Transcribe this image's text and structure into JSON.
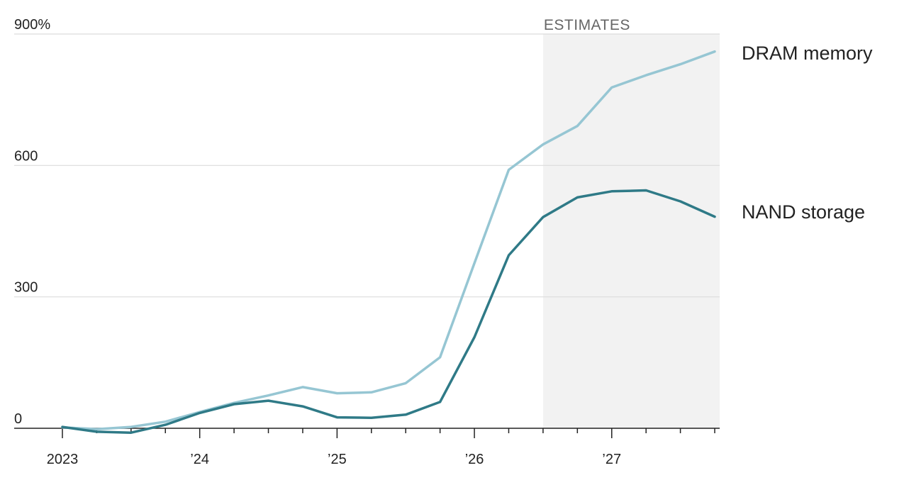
{
  "chart_data": {
    "type": "line",
    "ylabel": "",
    "xlabel": "",
    "ylim": [
      0,
      900
    ],
    "y_ticks": [
      {
        "value": 0,
        "label": "0"
      },
      {
        "value": 300,
        "label": "300"
      },
      {
        "value": 600,
        "label": "600"
      },
      {
        "value": 900,
        "label": "900%"
      }
    ],
    "xlim": [
      2023.0,
      2027.75
    ],
    "x_ticks": [
      {
        "value": 2023.0,
        "label": "2023"
      },
      {
        "value": 2024.0,
        "label": "’24"
      },
      {
        "value": 2025.0,
        "label": "’25"
      },
      {
        "value": 2026.0,
        "label": "’26"
      },
      {
        "value": 2027.0,
        "label": "’27"
      }
    ],
    "minor_ticks": [
      2023.25,
      2023.5,
      2023.75,
      2024.25,
      2024.5,
      2024.75,
      2025.25,
      2025.5,
      2025.75,
      2026.25,
      2026.5,
      2026.75,
      2027.25,
      2027.5,
      2027.75
    ],
    "estimates_region": {
      "start": 2026.5,
      "end": 2027.75,
      "label": "ESTIMATES"
    },
    "grid": true,
    "x": [
      2023.0,
      2023.25,
      2023.5,
      2023.75,
      2024.0,
      2024.25,
      2024.5,
      2024.75,
      2025.0,
      2025.25,
      2025.5,
      2025.75,
      2026.0,
      2026.25,
      2026.5,
      2026.75,
      2027.0,
      2027.25,
      2027.5,
      2027.75
    ],
    "series": [
      {
        "name": "DRAM memory",
        "color": "#96c6d3",
        "values": [
          2,
          -2,
          3,
          15,
          37,
          58,
          75,
          94,
          80,
          82,
          103,
          162,
          377,
          590,
          648,
          690,
          778,
          806,
          831,
          860
        ]
      },
      {
        "name": "NAND storage",
        "color": "#2f7a87",
        "values": [
          3,
          -8,
          -10,
          8,
          35,
          55,
          63,
          50,
          25,
          24,
          31,
          60,
          208,
          395,
          482,
          527,
          541,
          543,
          518,
          483
        ]
      }
    ]
  }
}
